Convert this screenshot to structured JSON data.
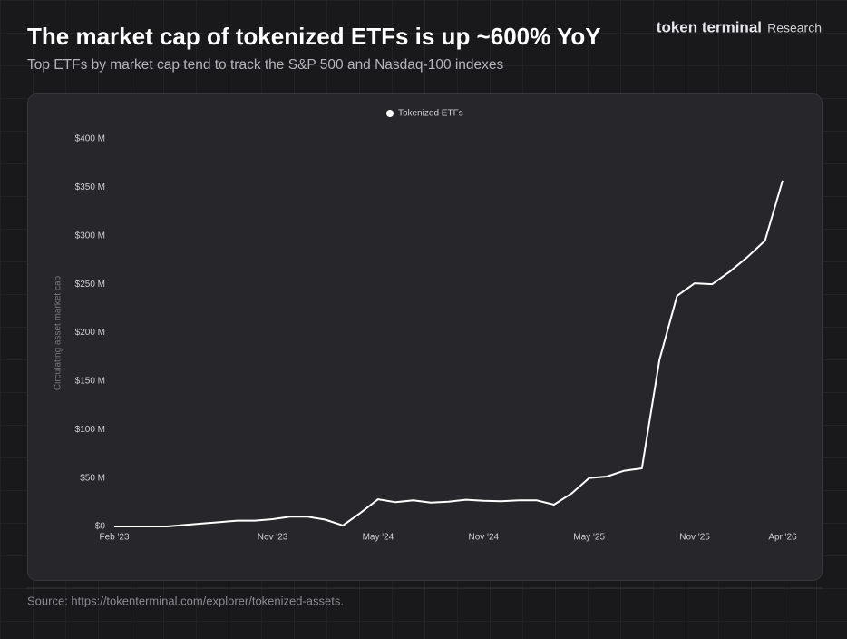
{
  "header": {
    "brand": "token terminal",
    "brand_suffix": "Research"
  },
  "chart_data": {
    "type": "line",
    "title": "The market cap of tokenized ETFs is up ~600% YoY",
    "subtitle": "Top ETFs by market cap tend to track the S&P 500 and Nasdaq-100 indexes",
    "y_label": "Circulating asset market cap",
    "categories": [
      "Feb '23",
      null,
      null,
      null,
      null,
      null,
      null,
      null,
      null,
      "Nov '23",
      null,
      null,
      null,
      null,
      null,
      "May '24",
      null,
      null,
      null,
      null,
      null,
      "Nov '24",
      null,
      null,
      null,
      null,
      null,
      "May '25",
      null,
      null,
      null,
      null,
      null,
      "Nov '25",
      null,
      null,
      null,
      null,
      "Apr '26"
    ],
    "series": [
      {
        "name": "Tokenized ETFs",
        "color": "#ffffff",
        "values": [
          0,
          0,
          0,
          0,
          1.5,
          3,
          4.5,
          6,
          6,
          7.5,
          10,
          10,
          7,
          1,
          14,
          28,
          25,
          27,
          24.5,
          25.5,
          27.5,
          26.5,
          26,
          27,
          27,
          22.5,
          34,
          50,
          51.5,
          57.5,
          60,
          172,
          238,
          251,
          250,
          263,
          278,
          295,
          357
        ]
      }
    ],
    "ylim": [
      0,
      400
    ],
    "yticks": [
      {
        "value": 0,
        "label": "$0"
      },
      {
        "value": 50,
        "label": "$50 M"
      },
      {
        "value": 100,
        "label": "$100 M"
      },
      {
        "value": 150,
        "label": "$150 M"
      },
      {
        "value": 200,
        "label": "$200 M"
      },
      {
        "value": 250,
        "label": "$250 M"
      },
      {
        "value": 300,
        "label": "$300 M"
      },
      {
        "value": 350,
        "label": "$350 M"
      },
      {
        "value": 400,
        "label": "$400 M"
      }
    ],
    "grid": false,
    "legend": "top",
    "source": "Source: https://tokenterminal.com/explorer/tokenized-assets."
  }
}
